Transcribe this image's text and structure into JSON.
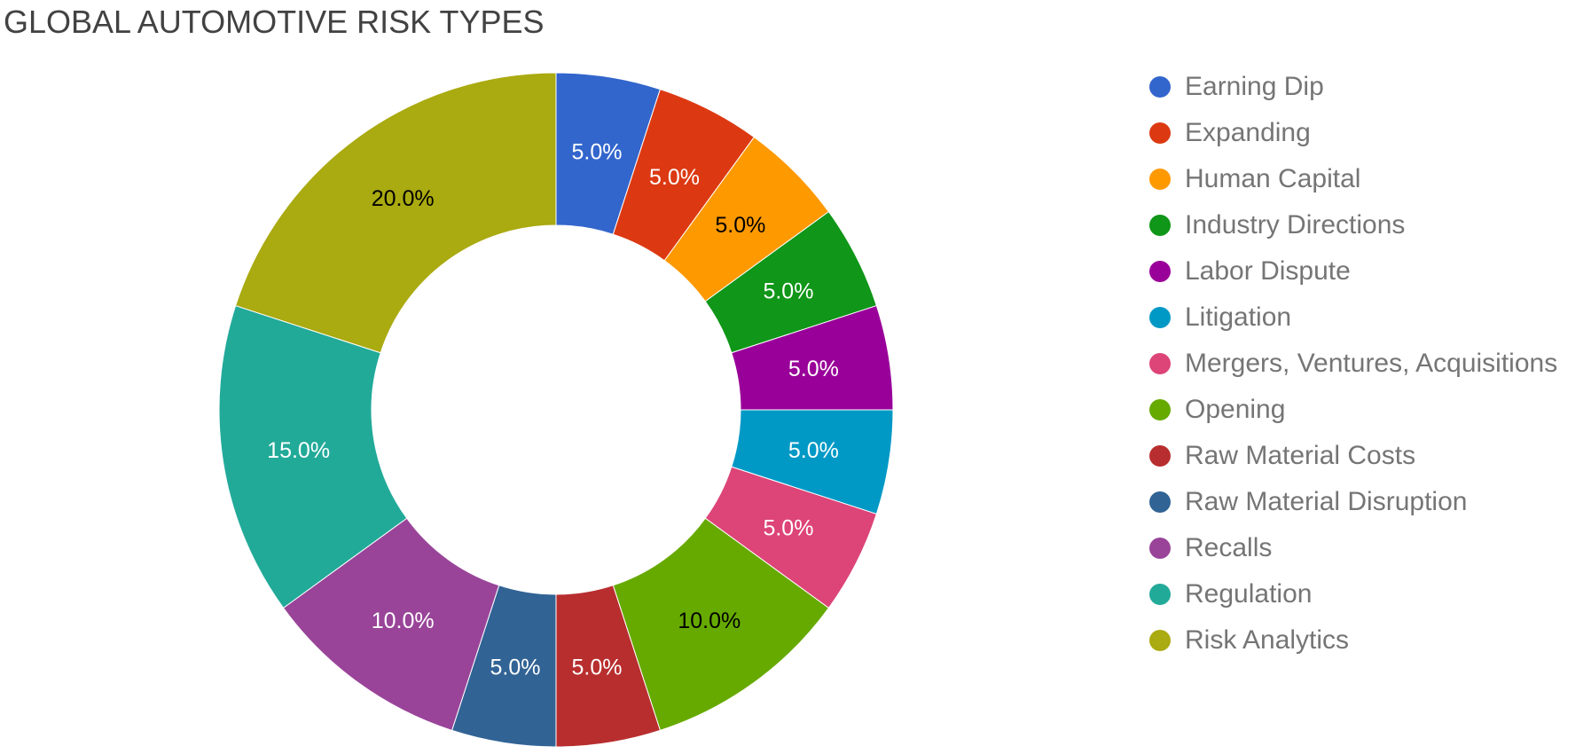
{
  "chart_data": {
    "type": "pie",
    "title": "GLOBAL AUTOMOTIVE RISK TYPES",
    "donut": true,
    "legend_position": "right",
    "slices": [
      {
        "label": "Earning Dip",
        "value": 5.0,
        "display": "5.0%",
        "color": "#3366cc",
        "label_color": "#ffffff"
      },
      {
        "label": "Expanding",
        "value": 5.0,
        "display": "5.0%",
        "color": "#dc3912",
        "label_color": "#ffffff"
      },
      {
        "label": "Human Capital",
        "value": 5.0,
        "display": "5.0%",
        "color": "#ff9900",
        "label_color": "#000000"
      },
      {
        "label": "Industry Directions",
        "value": 5.0,
        "display": "5.0%",
        "color": "#109618",
        "label_color": "#ffffff"
      },
      {
        "label": "Labor Dispute",
        "value": 5.0,
        "display": "5.0%",
        "color": "#990099",
        "label_color": "#ffffff"
      },
      {
        "label": "Litigation",
        "value": 5.0,
        "display": "5.0%",
        "color": "#0099c6",
        "label_color": "#ffffff"
      },
      {
        "label": "Mergers, Ventures, Acquisitions",
        "value": 5.0,
        "display": "5.0%",
        "color": "#dd4477",
        "label_color": "#ffffff"
      },
      {
        "label": "Opening",
        "value": 10.0,
        "display": "10.0%",
        "color": "#66aa00",
        "label_color": "#000000"
      },
      {
        "label": "Raw Material Costs",
        "value": 5.0,
        "display": "5.0%",
        "color": "#b82e2e",
        "label_color": "#ffffff"
      },
      {
        "label": "Raw Material Disruption",
        "value": 5.0,
        "display": "5.0%",
        "color": "#316395",
        "label_color": "#ffffff"
      },
      {
        "label": "Recalls",
        "value": 10.0,
        "display": "10.0%",
        "color": "#994499",
        "label_color": "#ffffff"
      },
      {
        "label": "Regulation",
        "value": 15.0,
        "display": "15.0%",
        "color": "#22aa99",
        "label_color": "#ffffff"
      },
      {
        "label": "Risk Analytics",
        "value": 20.0,
        "display": "20.0%",
        "color": "#aaaa11",
        "label_color": "#000000"
      }
    ]
  }
}
